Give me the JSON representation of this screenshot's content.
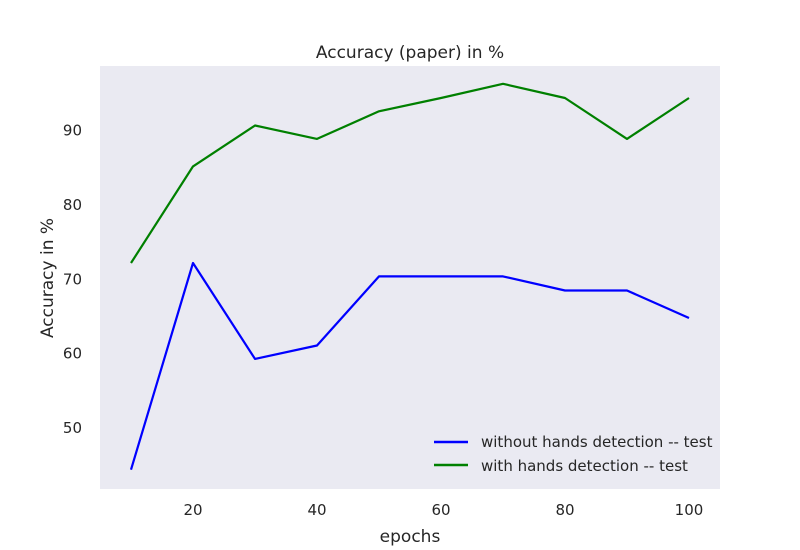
{
  "chart_data": {
    "type": "line",
    "title": "Accuracy (paper)  in %",
    "xlabel": "epochs",
    "ylabel": "Accuracy in %",
    "x": [
      10,
      20,
      30,
      40,
      50,
      60,
      70,
      80,
      90,
      100
    ],
    "xlim": [
      5,
      105
    ],
    "ylim": [
      41.8,
      98.7
    ],
    "xticks": [
      20,
      40,
      60,
      80,
      100
    ],
    "yticks": [
      50,
      60,
      70,
      80,
      90
    ],
    "grid": false,
    "legend_position": "lower-right",
    "background_color": "#eaeaf2",
    "series": [
      {
        "name": "without hands detection -- test",
        "color": "#0000ff",
        "values": [
          44.4,
          72.2,
          59.3,
          61.1,
          70.4,
          70.4,
          70.4,
          68.5,
          68.5,
          64.8
        ]
      },
      {
        "name": "with hands detection -- test",
        "color": "#008000",
        "values": [
          72.2,
          85.2,
          90.7,
          88.9,
          92.6,
          94.4,
          96.3,
          94.4,
          88.9,
          94.4
        ]
      }
    ]
  }
}
